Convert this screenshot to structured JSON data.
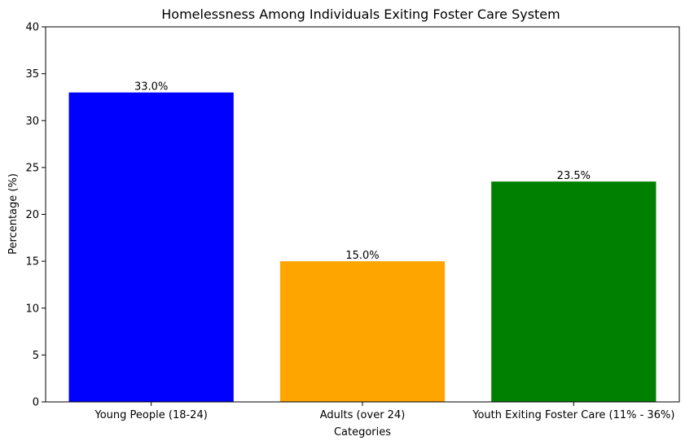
{
  "chart_data": {
    "type": "bar",
    "title": "Homelessness Among Individuals Exiting Foster Care System",
    "xlabel": "Categories",
    "ylabel": "Percentage (%)",
    "categories": [
      "Young People (18-24)",
      "Adults (over 24)",
      "Youth Exiting Foster Care (11% - 36%)"
    ],
    "values": [
      33.0,
      15.0,
      23.5
    ],
    "data_labels": [
      "33.0%",
      "15.0%",
      "23.5%"
    ],
    "colors": [
      "#0000ff",
      "#ffa500",
      "#008000"
    ],
    "ylim": [
      0,
      40
    ],
    "yticks": [
      0,
      5,
      10,
      15,
      20,
      25,
      30,
      35,
      40
    ],
    "grid": false,
    "legend": "none"
  }
}
